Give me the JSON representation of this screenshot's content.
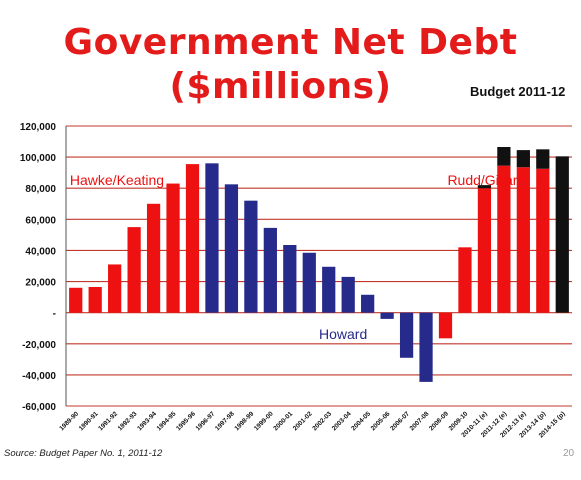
{
  "slide": {
    "title_line1": "Government Net Debt",
    "title_line2": "($millions)",
    "subtitle": "Budget 2011-12",
    "source": "Source: Budget Paper No. 1, 2011-12",
    "page_number": "20"
  },
  "colors": {
    "title": "#e31b1b",
    "labor": "#ee1111",
    "coalition": "#262a8a",
    "projection_extra": "#111111",
    "grid": "#c0392b"
  },
  "chart_data": {
    "type": "bar",
    "title": "Government Net Debt ($millions)",
    "categories": [
      "1989-90",
      "1990-91",
      "1991-92",
      "1992-93",
      "1993-94",
      "1994-95",
      "1995-96",
      "1996-97",
      "1997-98",
      "1998-99",
      "1999-00",
      "2000-01",
      "2001-02",
      "2002-03",
      "2003-04",
      "2004-05",
      "2005-06",
      "2006-07",
      "2007-08",
      "2008-09",
      "2009-10",
      "2010-11 (e)",
      "2011-12 (e)",
      "2012-13 (e)",
      "2013-14 (p)",
      "2014-15 (p)"
    ],
    "values": [
      16000,
      16500,
      31000,
      55000,
      70000,
      83000,
      95500,
      96000,
      82500,
      72000,
      54500,
      43500,
      38500,
      29500,
      23000,
      11500,
      -4000,
      -29000,
      -44500,
      -16500,
      42000,
      80000,
      94500,
      93500,
      92500,
      0
    ],
    "extra_stack": [
      0,
      0,
      0,
      0,
      0,
      0,
      0,
      0,
      0,
      0,
      0,
      0,
      0,
      0,
      0,
      0,
      0,
      0,
      0,
      0,
      0,
      2000,
      12000,
      11000,
      12500,
      100500
    ],
    "government": [
      "labor",
      "labor",
      "labor",
      "labor",
      "labor",
      "labor",
      "labor",
      "coalition",
      "coalition",
      "coalition",
      "coalition",
      "coalition",
      "coalition",
      "coalition",
      "coalition",
      "coalition",
      "coalition",
      "coalition",
      "coalition",
      "labor",
      "labor",
      "labor",
      "labor",
      "labor",
      "labor",
      "labor"
    ],
    "ylim": [
      -60000,
      120000
    ],
    "yticks": [
      -60000,
      -40000,
      -20000,
      0,
      20000,
      40000,
      60000,
      80000,
      100000,
      120000
    ],
    "ytick_labels": [
      "-60,000",
      "-40,000",
      "-20,000",
      "-",
      "20,000",
      "40,000",
      "60,000",
      "80,000",
      "100,000",
      "120,000"
    ],
    "grid": true,
    "annotations": [
      {
        "text": "Hawke/Keating",
        "color": "#ee1111",
        "x_index": 0.2,
        "y": 86000
      },
      {
        "text": "Rudd/Gillard",
        "color": "#ee1111",
        "x_index": 19.6,
        "y": 86000
      },
      {
        "text": "Howard",
        "color": "#262a8a",
        "x_index": 13.0,
        "y": -13000
      }
    ]
  }
}
